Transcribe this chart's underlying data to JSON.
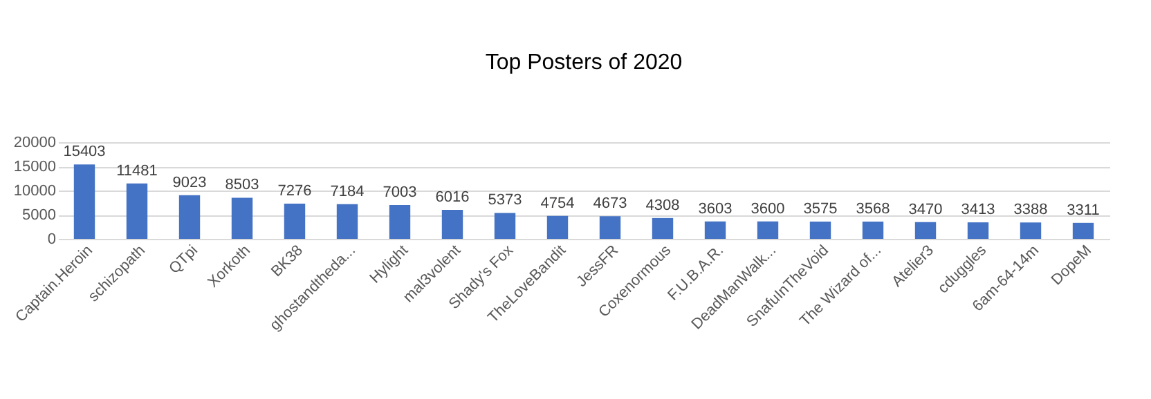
{
  "chart_data": {
    "type": "bar",
    "title": "Top Posters of 2020",
    "categories": [
      "Captain.Heroin",
      "schizopath",
      "QTpi",
      "Xorkoth",
      "BK38",
      "ghostandtheda...",
      "Hylight",
      "mal3volent",
      "Shady's Fox",
      "TheLoveBandit",
      "JessFR",
      "Coxenormous",
      "F.U.B.A.R.",
      "DeadManWalk...",
      "SnafuInTheVoid",
      "The Wizard of...",
      "Atelier3",
      "cduggles",
      "6am-64-14m",
      "DopeM"
    ],
    "values": [
      15403,
      11481,
      9023,
      8503,
      7276,
      7184,
      7003,
      6016,
      5373,
      4754,
      4673,
      4308,
      3603,
      3600,
      3575,
      3568,
      3470,
      3413,
      3388,
      3311
    ],
    "color": "#4472c4",
    "ylim": [
      0,
      20000
    ],
    "yticks": [
      0,
      5000,
      10000,
      15000,
      20000
    ],
    "grid": "y",
    "data_labels": true
  }
}
